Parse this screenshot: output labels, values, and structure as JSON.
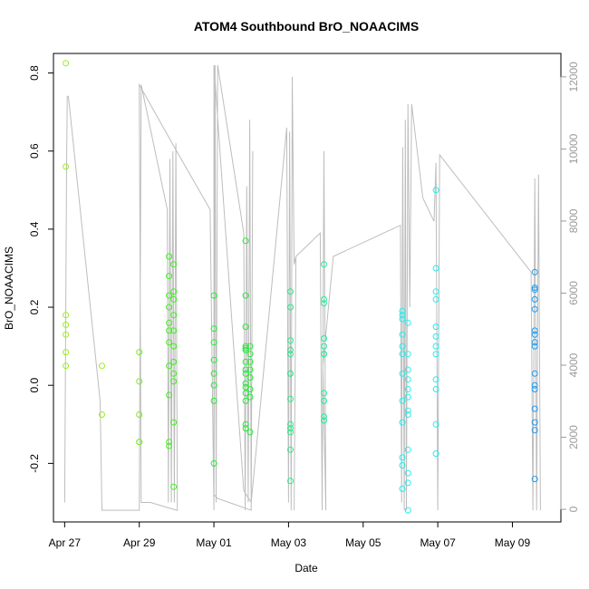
{
  "chart_data": {
    "type": "scatter",
    "title": "ATOM4 Southbound BrO_NOAACIMS",
    "xlabel": "Date",
    "ylabel": "BrO_NOAACIMS",
    "x_unit": "days since Apr 27",
    "xlim": [
      -0.3,
      13.3
    ],
    "ylim": [
      -0.35,
      0.85
    ],
    "x_ticks": [
      {
        "value": 0,
        "label": "Apr 27"
      },
      {
        "value": 2,
        "label": "Apr 29"
      },
      {
        "value": 4,
        "label": "May 01"
      },
      {
        "value": 6,
        "label": "May 03"
      },
      {
        "value": 8,
        "label": "May 05"
      },
      {
        "value": 10,
        "label": "May 07"
      },
      {
        "value": 12,
        "label": "May 09"
      }
    ],
    "y_ticks": [
      {
        "value": -0.2,
        "label": "-0.2"
      },
      {
        "value": 0.0,
        "label": "0.0"
      },
      {
        "value": 0.2,
        "label": "0.2"
      },
      {
        "value": 0.4,
        "label": "0.4"
      },
      {
        "value": 0.6,
        "label": "0.6"
      },
      {
        "value": 0.8,
        "label": "0.8"
      }
    ],
    "right_axis": {
      "label": "",
      "ylim": [
        -350,
        12650
      ],
      "ticks": [
        {
          "value": 0,
          "label": "0"
        },
        {
          "value": 2000,
          "label": "2000"
        },
        {
          "value": 4000,
          "label": "4000"
        },
        {
          "value": 6000,
          "label": "6000"
        },
        {
          "value": 8000,
          "label": "8000"
        },
        {
          "value": 10000,
          "label": "10000"
        },
        {
          "value": 12000,
          "label": "12000"
        }
      ]
    },
    "point_groups": [
      {
        "x": 0.03,
        "color": "#99ee22",
        "y": [
          0.825,
          0.56,
          0.18,
          0.155,
          0.13,
          0.085,
          0.05
        ]
      },
      {
        "x": 1.0,
        "color": "#99ee22",
        "y": [
          0.05,
          -0.075
        ]
      },
      {
        "x": 2.0,
        "color": "#77ee22",
        "y": [
          0.085,
          0.01,
          -0.075,
          -0.145,
          -0.145
        ]
      },
      {
        "x": 2.8,
        "color": "#44ee22",
        "y": [
          0.33,
          0.28,
          0.23,
          0.2,
          0.16,
          0.14,
          0.11,
          0.05,
          -0.025,
          -0.145,
          -0.155
        ]
      },
      {
        "x": 2.92,
        "color": "#44ee22",
        "y": [
          0.31,
          0.24,
          0.22,
          0.18,
          0.14,
          0.1,
          0.06,
          0.03,
          0.01,
          -0.095,
          -0.26
        ]
      },
      {
        "x": 4.0,
        "color": "#22ee33",
        "y": [
          0.23,
          0.145,
          0.11,
          0.065,
          0.03,
          0.0,
          -0.04,
          -0.2
        ]
      },
      {
        "x": 4.85,
        "color": "#22ee33",
        "y": [
          0.37,
          0.23,
          0.15,
          0.1,
          0.095,
          0.09,
          0.06,
          0.04,
          0.03,
          0.005,
          -0.005,
          -0.02,
          -0.04,
          -0.1,
          -0.11
        ]
      },
      {
        "x": 4.97,
        "color": "#22ee33",
        "y": [
          0.1,
          0.08,
          0.06,
          0.04,
          0.02,
          -0.01,
          -0.03,
          -0.12
        ]
      },
      {
        "x": 6.05,
        "color": "#22ee88",
        "y": [
          0.24,
          0.2,
          0.115,
          0.09,
          0.08,
          0.03,
          0.03,
          -0.035,
          -0.1,
          -0.11,
          -0.12,
          -0.165,
          -0.245
        ]
      },
      {
        "x": 6.95,
        "color": "#22ee99",
        "y": [
          0.31,
          0.22,
          0.21,
          0.12,
          0.1,
          0.08,
          0.08,
          -0.02,
          -0.04,
          -0.08,
          -0.09
        ]
      },
      {
        "x": 9.05,
        "color": "#22eeee",
        "y": [
          0.19,
          0.18,
          0.17,
          0.13,
          0.1,
          0.08,
          0.03,
          -0.04,
          -0.095,
          -0.185,
          -0.205,
          -0.265
        ]
      },
      {
        "x": 9.2,
        "color": "#22eeee",
        "y": [
          0.16,
          0.08,
          0.04,
          0.015,
          -0.01,
          -0.03,
          -0.065,
          -0.075,
          -0.165,
          -0.225,
          -0.25,
          -0.32
        ]
      },
      {
        "x": 9.95,
        "color": "#22eeee",
        "y": [
          0.5,
          0.3,
          0.24,
          0.22,
          0.15,
          0.125,
          0.1,
          0.08,
          0.015,
          -0.01,
          -0.1,
          -0.175
        ]
      },
      {
        "x": 12.6,
        "color": "#2299ee",
        "y": [
          0.29,
          0.25,
          0.245,
          0.22,
          0.195,
          0.14,
          0.13,
          0.11,
          0.1,
          0.03,
          0.0,
          -0.01,
          -0.06,
          -0.095,
          -0.115,
          -0.24
        ]
      }
    ],
    "altitude_trace": {
      "color": "#bdbdbd",
      "x": [
        0.0,
        0.05,
        0.07,
        0.08,
        0.1,
        0.95,
        1.0,
        2.0,
        2.05,
        2.75,
        2.78,
        2.82,
        2.86,
        2.9,
        2.94,
        2.98,
        3.02,
        3.0,
        2.3,
        2.05,
        2.0,
        3.0,
        3.9,
        4.0,
        4.03,
        4.06,
        4.1,
        4.8,
        4.84,
        4.88,
        4.92,
        4.96,
        5.0,
        5.04,
        5.0,
        4.1,
        4.0,
        4.0,
        4.8,
        5.0,
        5.95,
        6.0,
        6.03,
        6.07,
        6.1,
        6.15,
        6.2,
        6.15,
        6.2,
        6.85,
        6.9,
        6.95,
        7.0,
        6.92,
        7.2,
        9.0,
        9.03,
        9.06,
        9.1,
        9.13,
        9.16,
        9.2,
        9.25,
        9.3,
        9.6,
        9.9,
        9.95,
        10.0,
        10.05,
        12.5,
        12.55,
        12.6,
        12.65,
        12.7,
        12.75
      ],
      "y": [
        -0.3,
        0.53,
        0.74,
        0.74,
        0.74,
        -0.04,
        -0.32,
        -0.32,
        0.77,
        0.45,
        -0.3,
        0.58,
        -0.3,
        0.6,
        -0.3,
        0.62,
        -0.32,
        -0.32,
        -0.3,
        -0.3,
        0.77,
        0.6,
        0.45,
        -0.32,
        0.82,
        -0.3,
        0.82,
        0.39,
        -0.32,
        0.51,
        -0.3,
        0.68,
        -0.32,
        0.6,
        -0.32,
        -0.29,
        -0.28,
        0.82,
        -0.27,
        -0.3,
        0.66,
        -0.3,
        0.65,
        -0.32,
        0.79,
        0.31,
        0.33,
        -0.32,
        0.33,
        0.39,
        -0.32,
        0.6,
        -0.32,
        0.05,
        0.33,
        0.41,
        -0.3,
        0.61,
        -0.32,
        0.68,
        -0.32,
        0.72,
        0.2,
        0.72,
        0.48,
        0.42,
        0.57,
        -0.32,
        0.59,
        0.29,
        -0.32,
        0.53,
        -0.32,
        0.54,
        -0.32
      ]
    }
  }
}
